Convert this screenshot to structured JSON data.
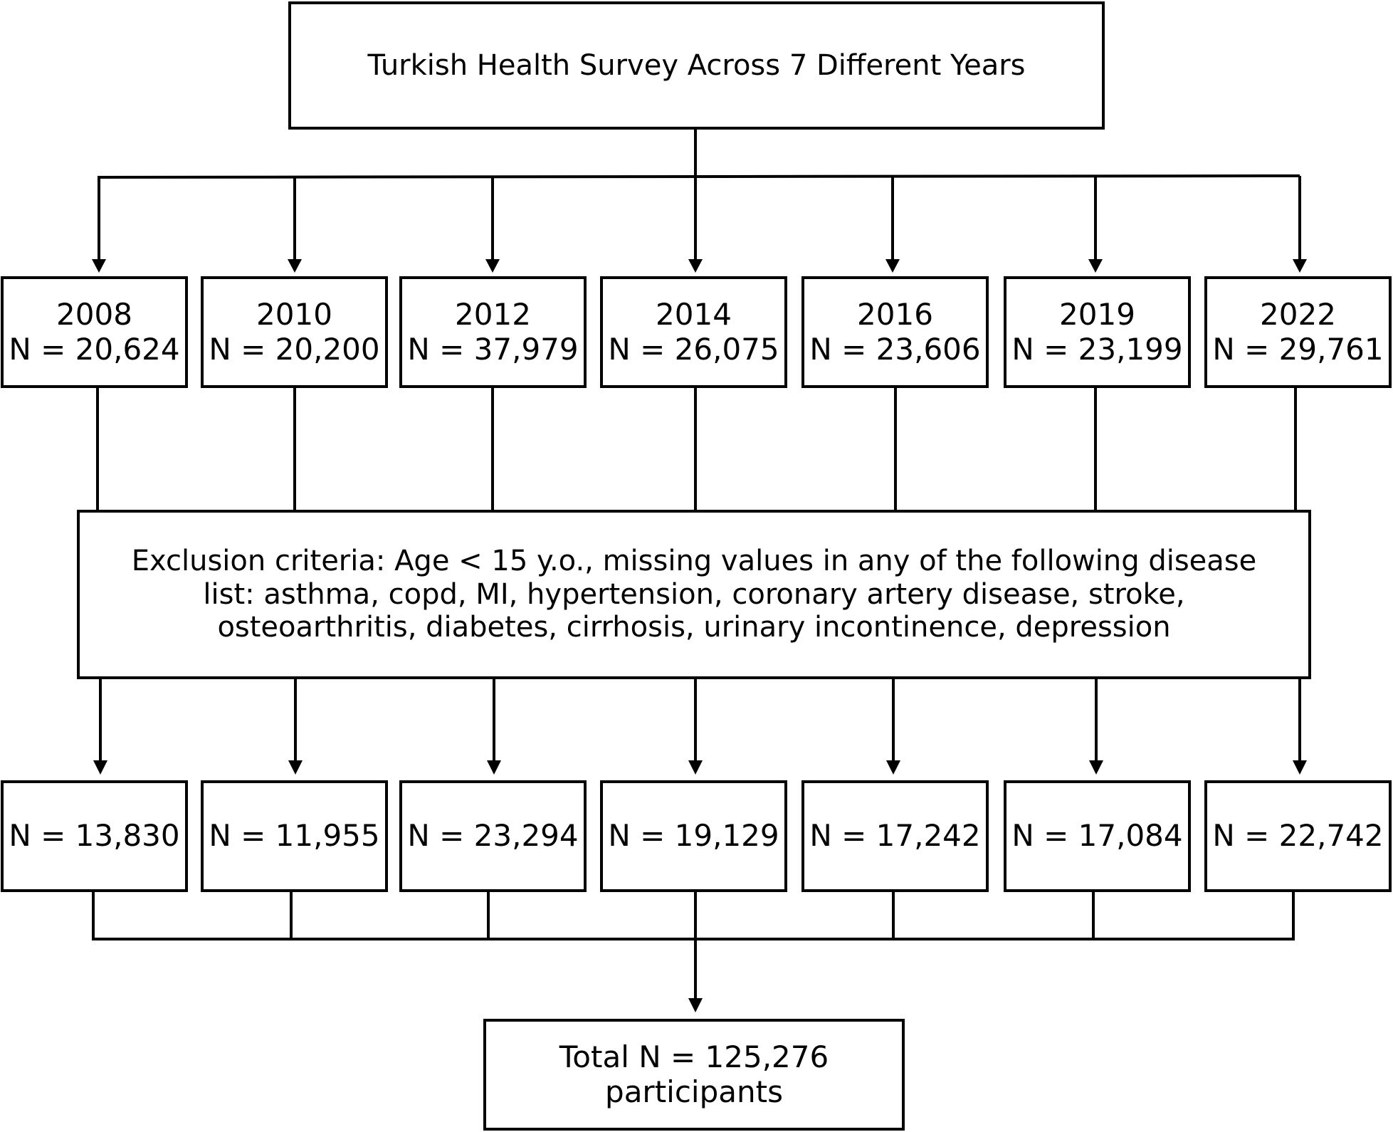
{
  "diagram": {
    "title": "Turkish Health Survey Across 7 Different Years",
    "surveys": [
      {
        "year": "2008",
        "n_initial": "N = 20,624",
        "n_final": "N = 13,830"
      },
      {
        "year": "2010",
        "n_initial": "N = 20,200",
        "n_final": "N = 11,955"
      },
      {
        "year": "2012",
        "n_initial": "N = 37,979",
        "n_final": "N = 23,294"
      },
      {
        "year": "2014",
        "n_initial": "N = 26,075",
        "n_final": "N = 19,129"
      },
      {
        "year": "2016",
        "n_initial": "N = 23,606",
        "n_final": "N = 17,242"
      },
      {
        "year": "2019",
        "n_initial": "N = 23,199",
        "n_final": "N = 17,084"
      },
      {
        "year": "2022",
        "n_initial": "N = 29,761",
        "n_final": "N = 22,742"
      }
    ],
    "exclusion": {
      "lines": [
        "Exclusion criteria: Age < 15 y.o., missing values in any of the following disease",
        "list: asthma, copd, MI, hypertension, coronary artery disease, stroke,",
        "osteoarthritis, diabetes, cirrhosis, urinary incontinence, depression"
      ]
    },
    "total": {
      "lines": [
        "Total N = 125,276",
        "participants"
      ]
    },
    "colors": {
      "line": "#000000",
      "background": "#ffffff"
    }
  }
}
